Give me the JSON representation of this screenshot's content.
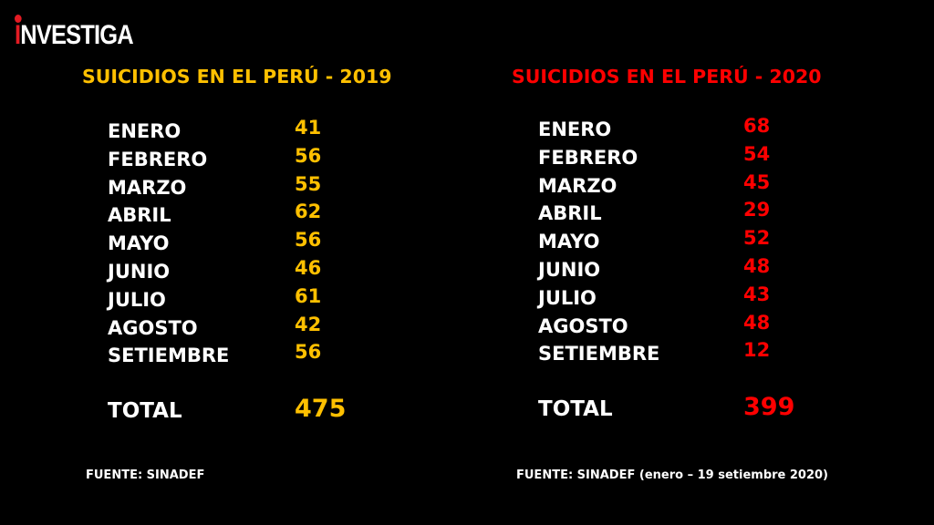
{
  "logo": {
    "text": "INVESTIGA",
    "first_letter": "I",
    "rest": "NVESTIGA",
    "accent": "#e31b23"
  },
  "table_2019": {
    "title": "SUICIDIOS EN EL PERÚ - 2019",
    "color": "#ffc000",
    "rows": [
      {
        "month": "ENERO",
        "value": "41"
      },
      {
        "month": "FEBRERO",
        "value": "56"
      },
      {
        "month": "MARZO",
        "value": "55"
      },
      {
        "month": "ABRIL",
        "value": "62"
      },
      {
        "month": "MAYO",
        "value": "56"
      },
      {
        "month": "JUNIO",
        "value": "46"
      },
      {
        "month": "JULIO",
        "value": "61"
      },
      {
        "month": "AGOSTO",
        "value": "42"
      },
      {
        "month": "SETIEMBRE",
        "value": "56"
      }
    ],
    "total_label": "TOTAL",
    "total_value": "475",
    "source": "FUENTE: SINADEF"
  },
  "table_2020": {
    "title": "SUICIDIOS EN EL PERÚ - 2020",
    "color": "#ff0000",
    "rows": [
      {
        "month": "ENERO",
        "value": "68"
      },
      {
        "month": "FEBRERO",
        "value": "54"
      },
      {
        "month": "MARZO",
        "value": "45"
      },
      {
        "month": "ABRIL",
        "value": "29"
      },
      {
        "month": "MAYO",
        "value": "52"
      },
      {
        "month": "JUNIO",
        "value": "48"
      },
      {
        "month": "JULIO",
        "value": "43"
      },
      {
        "month": "AGOSTO",
        "value": "48"
      },
      {
        "month": "SETIEMBRE",
        "value": "12"
      }
    ],
    "total_label": "TOTAL",
    "total_value": "399",
    "source": "FUENTE: SINADEF (enero – 19 setiembre 2020)"
  }
}
